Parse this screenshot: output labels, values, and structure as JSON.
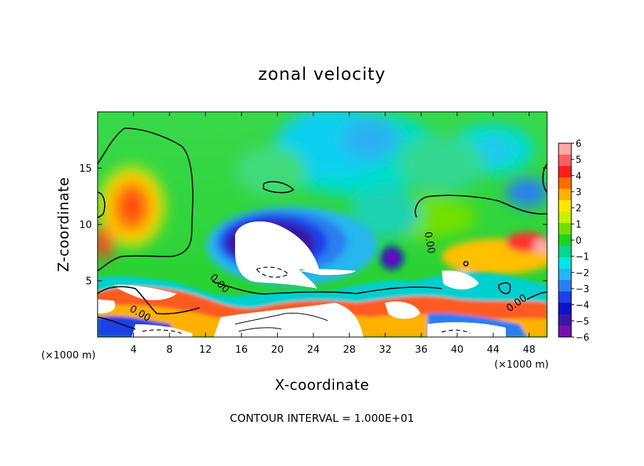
{
  "chart_data": {
    "type": "heatmap",
    "title": "zonal velocity",
    "xlabel": "X-coordinate",
    "ylabel": "Z-coordinate",
    "x_units": "(×1000 m)",
    "y_units": "(×1000 m)",
    "xlim": [
      0,
      50
    ],
    "ylim": [
      0,
      20
    ],
    "x_ticks": [
      4,
      8,
      12,
      16,
      20,
      24,
      28,
      32,
      36,
      40,
      44,
      48
    ],
    "y_ticks": [
      5,
      10,
      15
    ],
    "colorbar": {
      "min": -6,
      "max": 6,
      "ticks": [
        "6",
        "5",
        "4",
        "3",
        "2",
        "1",
        "0",
        "-1",
        "-2",
        "-3",
        "-4",
        "-5",
        "-6"
      ],
      "colors": [
        "#ffa8a8",
        "#ff5f5f",
        "#ff1e1e",
        "#ff6c00",
        "#ffb000",
        "#ffe600",
        "#c8f000",
        "#70e000",
        "#1fd21f",
        "#00d890",
        "#00e6e6",
        "#27b6f0",
        "#2a7ef2",
        "#1f3fe6",
        "#1010c8",
        "#3818a8",
        "#7a10b0"
      ]
    },
    "contour_labels": [
      "0.00",
      "0.00",
      "0.00",
      "0.00"
    ],
    "footer": "CONTOUR INTERVAL = 1.000E+01"
  }
}
